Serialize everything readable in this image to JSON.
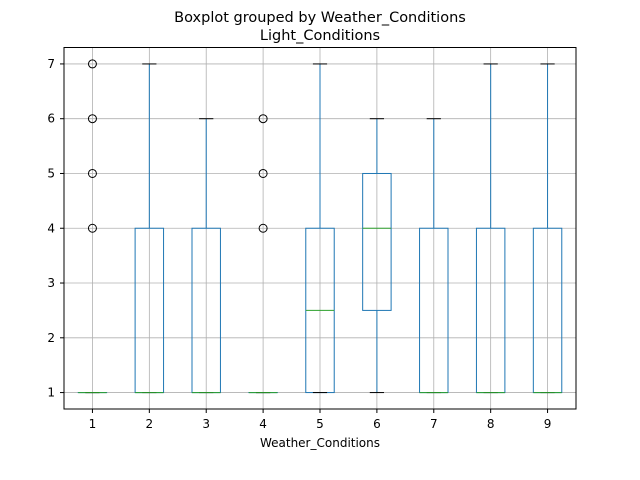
{
  "chart_data": {
    "type": "boxplot",
    "title": "Boxplot grouped by Weather_Conditions",
    "subtitle": "Light_Conditions",
    "xlabel": "Weather_Conditions",
    "ylabel": "",
    "ylim": [
      0.7,
      7.3
    ],
    "y_ticks": [
      1,
      2,
      3,
      4,
      5,
      6,
      7
    ],
    "grid": true,
    "categories": [
      "1",
      "2",
      "3",
      "4",
      "5",
      "6",
      "7",
      "8",
      "9"
    ],
    "boxes": [
      {
        "category": "1",
        "whisker_low": 1,
        "q1": 1,
        "median": 1,
        "q3": 1,
        "whisker_high": 1,
        "outliers": [
          4,
          5,
          6,
          7
        ]
      },
      {
        "category": "2",
        "whisker_low": 1,
        "q1": 1,
        "median": 1,
        "q3": 4,
        "whisker_high": 7,
        "outliers": []
      },
      {
        "category": "3",
        "whisker_low": 1,
        "q1": 1,
        "median": 1,
        "q3": 4,
        "whisker_high": 6,
        "outliers": []
      },
      {
        "category": "4",
        "whisker_low": 1,
        "q1": 1,
        "median": 1,
        "q3": 1,
        "whisker_high": 1,
        "outliers": [
          4,
          5,
          6
        ]
      },
      {
        "category": "5",
        "whisker_low": 1,
        "q1": 1,
        "median": 2.5,
        "q3": 4,
        "whisker_high": 7,
        "outliers": []
      },
      {
        "category": "6",
        "whisker_low": 1,
        "q1": 2.5,
        "median": 4,
        "q3": 5,
        "whisker_high": 6,
        "outliers": []
      },
      {
        "category": "7",
        "whisker_low": 1,
        "q1": 1,
        "median": 1,
        "q3": 4,
        "whisker_high": 6,
        "outliers": []
      },
      {
        "category": "8",
        "whisker_low": 1,
        "q1": 1,
        "median": 1,
        "q3": 4,
        "whisker_high": 7,
        "outliers": []
      },
      {
        "category": "9",
        "whisker_low": 1,
        "q1": 1,
        "median": 1,
        "q3": 4,
        "whisker_high": 7,
        "outliers": []
      }
    ],
    "colors": {
      "box": "#1f77b4",
      "median": "#2ca02c",
      "whisker_cap": "#000000",
      "outlier": "#000000",
      "grid": "#b0b0b0"
    }
  }
}
